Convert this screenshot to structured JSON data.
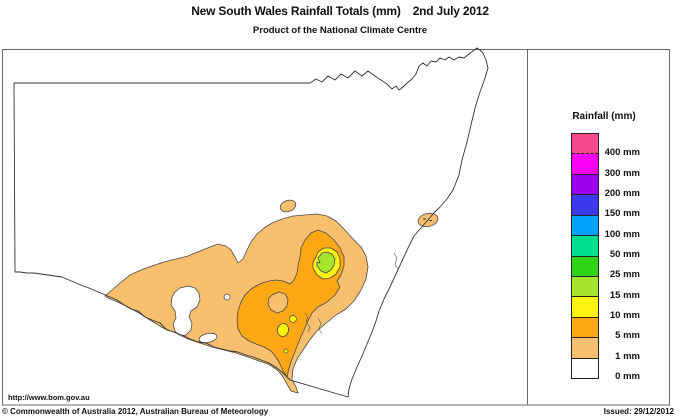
{
  "header": {
    "title": "New South Wales Rainfall Totals (mm)",
    "date": "2nd July 2012",
    "subtitle": "Product of the National Climate Centre"
  },
  "legend": {
    "title": "Rainfall (mm)",
    "items": [
      {
        "color": "#F94A8E",
        "label": "400 mm"
      },
      {
        "color": "#FB00F7",
        "label": "300 mm"
      },
      {
        "color": "#9D00EF",
        "label": "200 mm"
      },
      {
        "color": "#3C3AEF",
        "label": "150 mm"
      },
      {
        "color": "#00A2F7",
        "label": "100 mm"
      },
      {
        "color": "#00DE8F",
        "label": "50 mm"
      },
      {
        "color": "#2FD417",
        "label": "25 mm"
      },
      {
        "color": "#A5E52C",
        "label": "15 mm"
      },
      {
        "color": "#FCF40E",
        "label": "10 mm"
      },
      {
        "color": "#FCA713",
        "label": "5 mm"
      },
      {
        "color": "#F8BF6F",
        "label": "1 mm"
      },
      {
        "color": "#FFFFFF",
        "label": "0 mm"
      }
    ]
  },
  "footer": {
    "url": "http://www.bom.gov.au",
    "copyright": "© Commonwealth of Australia 2012, Australian Bureau of Meteorology",
    "issued": "Issued: 29/12/2012"
  },
  "colors": {
    "rain_1mm": "#F8BF6F",
    "rain_5mm": "#FCA713",
    "rain_10mm": "#FCF40E",
    "rain_15mm": "#A5E52C",
    "land": "#FFFFFF"
  }
}
